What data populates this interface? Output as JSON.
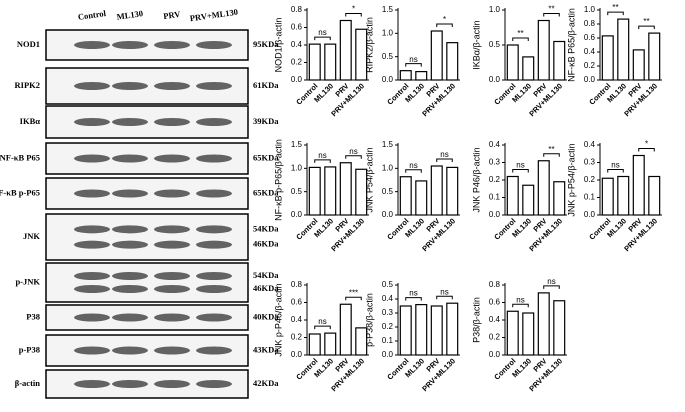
{
  "blot": {
    "lanes": [
      "Control",
      "ML130",
      "PRV",
      "PRV+ML130"
    ],
    "rows": [
      {
        "label": "NOD1",
        "sizes": [
          "95KDa"
        ]
      },
      {
        "label": "RIPK2",
        "sizes": [
          "61KDa"
        ]
      },
      {
        "label": "IKBα",
        "sizes": [
          "39KDa"
        ]
      },
      {
        "label": "NF-κB P65",
        "sizes": [
          "65KDa"
        ]
      },
      {
        "label": "NF-κB p-P65",
        "sizes": [
          "65KDa"
        ]
      },
      {
        "label": "JNK",
        "sizes": [
          "54KDa",
          "46KDa"
        ]
      },
      {
        "label": "p-JNK",
        "sizes": [
          "54KDa",
          "46KDa"
        ]
      },
      {
        "label": "P38",
        "sizes": [
          "40KDa"
        ]
      },
      {
        "label": "p-P38",
        "sizes": [
          "43KDa"
        ]
      },
      {
        "label": "β-actin",
        "sizes": [
          "42KDa"
        ]
      }
    ]
  },
  "chart_data": [
    {
      "type": "bar",
      "y_label": "NOD1/β-actin",
      "categories": [
        "Control",
        "ML130",
        "PRV",
        "PRV+ML130"
      ],
      "values": [
        0.41,
        0.41,
        0.68,
        0.58
      ],
      "ylim": [
        0,
        0.8
      ],
      "yticks": [
        {
          "value": 0,
          "label": "0.0"
        },
        0.2,
        0.4,
        0.6,
        0.8
      ],
      "annotations": [
        "ns",
        "*"
      ]
    },
    {
      "type": "bar",
      "y_label": "RIPK2/β-actin",
      "categories": [
        "Control",
        "ML130",
        "PRV",
        "PRV+ML130"
      ],
      "values": [
        0.2,
        0.18,
        1.05,
        0.8
      ],
      "ylim": [
        0,
        1.5
      ],
      "yticks": [
        {
          "value": 0,
          "label": "0.0"
        },
        0.5,
        {
          "value": 1,
          "label": "1.0"
        },
        1.5
      ],
      "annotations": [
        "ns",
        "*"
      ]
    },
    {
      "type": "bar",
      "y_label": "IKBα/β-actin",
      "categories": [
        "Control",
        "ML130",
        "PRV",
        "PRV+ML130"
      ],
      "values": [
        0.5,
        0.33,
        0.85,
        0.55
      ],
      "ylim": [
        0,
        1
      ],
      "yticks": [
        {
          "value": 0,
          "label": "0.0"
        },
        0.5,
        {
          "value": 1,
          "label": "1.0"
        }
      ],
      "annotations": [
        "**",
        "**"
      ]
    },
    {
      "type": "bar",
      "y_label": "NF-κB P65/β-actin",
      "categories": [
        "Control",
        "ML130",
        "PRV",
        "PRV+ML130"
      ],
      "values": [
        0.63,
        0.87,
        0.43,
        0.67
      ],
      "ylim": [
        0,
        1
      ],
      "yticks": [
        {
          "value": 0,
          "label": "0.0"
        },
        0.2,
        0.4,
        0.6,
        0.8,
        {
          "value": 1,
          "label": "1.0"
        }
      ],
      "annotations": [
        "**",
        "**"
      ]
    },
    {
      "type": "bar",
      "y_label": "NF-κB p-P65/β-actin",
      "categories": [
        "Control",
        "ML130",
        "PRV",
        "PRV+ML130"
      ],
      "values": [
        1.02,
        1.03,
        1.12,
        0.98
      ],
      "ylim": [
        0,
        1.5
      ],
      "yticks": [
        {
          "value": 0,
          "label": "0.0"
        },
        0.5,
        {
          "value": 1,
          "label": "1.0"
        },
        1.5
      ],
      "annotations": [
        "ns",
        "ns"
      ]
    },
    {
      "type": "bar",
      "y_label": "JNK P54/β-actin",
      "categories": [
        "Control",
        "ML130",
        "PRV",
        "PRV+ML130"
      ],
      "values": [
        0.82,
        0.73,
        1.05,
        1.02
      ],
      "ylim": [
        0,
        1.5
      ],
      "yticks": [
        {
          "value": 0,
          "label": "0.0"
        },
        0.5,
        {
          "value": 1,
          "label": "1.0"
        },
        1.5
      ],
      "annotations": [
        "ns",
        "ns"
      ]
    },
    {
      "type": "bar",
      "y_label": "JNK P46/β-actin",
      "categories": [
        "Control",
        "ML130",
        "PRV",
        "PRV+ML130"
      ],
      "values": [
        0.22,
        0.17,
        0.31,
        0.19
      ],
      "ylim": [
        0,
        0.4
      ],
      "yticks": [
        {
          "value": 0,
          "label": "0.0"
        },
        0.1,
        0.2,
        0.3,
        0.4
      ],
      "annotations": [
        "ns",
        "**"
      ]
    },
    {
      "type": "bar",
      "y_label": "JNK p-P54/β-actin",
      "categories": [
        "Control",
        "ML130",
        "PRV",
        "PRV+ML130"
      ],
      "values": [
        0.21,
        0.22,
        0.34,
        0.22
      ],
      "ylim": [
        0,
        0.4
      ],
      "yticks": [
        {
          "value": 0,
          "label": "0.0"
        },
        0.1,
        0.2,
        0.3,
        0.4
      ],
      "annotations": [
        "ns",
        "*"
      ]
    },
    {
      "type": "bar",
      "y_label": "JNK p-P46/β-actin",
      "categories": [
        "Control",
        "ML130",
        "PRV",
        "PRV+ML130"
      ],
      "values": [
        0.24,
        0.25,
        0.58,
        0.31
      ],
      "ylim": [
        0,
        0.8
      ],
      "yticks": [
        {
          "value": 0,
          "label": "0.0"
        },
        0.2,
        0.4,
        0.6,
        0.8
      ],
      "annotations": [
        "ns",
        "***"
      ]
    },
    {
      "type": "bar",
      "y_label": "p-P38/β-actin",
      "categories": [
        "Control",
        "ML130",
        "PRV",
        "PRV+ML130"
      ],
      "values": [
        0.35,
        0.36,
        0.35,
        0.37
      ],
      "ylim": [
        0,
        0.5
      ],
      "yticks": [
        {
          "value": 0,
          "label": "0.0"
        },
        0.1,
        0.2,
        0.3,
        0.4,
        0.5
      ],
      "annotations": [
        "ns",
        "ns"
      ]
    },
    {
      "type": "bar",
      "y_label": "P38/β-actin",
      "categories": [
        "Control",
        "ML130",
        "PRV",
        "PRV+ML130"
      ],
      "values": [
        0.5,
        0.48,
        0.71,
        0.62
      ],
      "ylim": [
        0,
        0.8
      ],
      "yticks": [
        {
          "value": 0,
          "label": "0.0"
        },
        0.2,
        0.4,
        0.6,
        0.8
      ],
      "annotations": [
        "ns",
        "ns"
      ]
    }
  ]
}
